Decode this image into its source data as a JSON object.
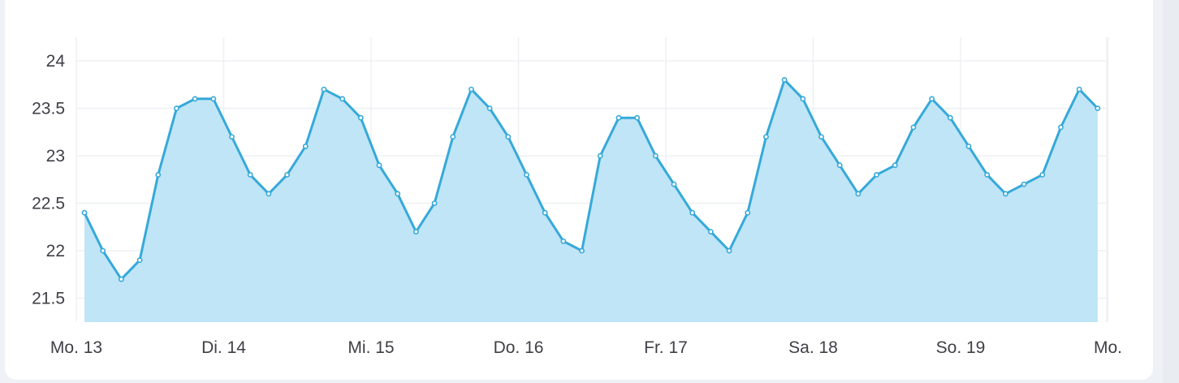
{
  "card": {
    "title": ""
  },
  "colors": {
    "line": "#36a9d9",
    "area": "#bfe5f7",
    "grid": "#eef0f3",
    "point_fill": "#ffffff"
  },
  "chart_data": {
    "type": "area",
    "title": "",
    "xlabel": "",
    "ylabel": "",
    "ylim": [
      21.25,
      24.25
    ],
    "y_ticks": [
      21.5,
      22,
      22.5,
      23,
      23.5,
      24
    ],
    "x_ticks": [
      {
        "label": "Mo. 13",
        "day": 0
      },
      {
        "label": "Di. 14",
        "day": 1
      },
      {
        "label": "Mi. 15",
        "day": 2
      },
      {
        "label": "Do. 16",
        "day": 3
      },
      {
        "label": "Fr. 17",
        "day": 4
      },
      {
        "label": "Sa. 18",
        "day": 5
      },
      {
        "label": "So. 19",
        "day": 6
      },
      {
        "label": "Mo.",
        "day": 7
      }
    ],
    "grid": true,
    "legend": "none",
    "series": [
      {
        "x_hours": [
          0,
          3,
          6,
          9,
          12,
          15,
          18,
          21,
          24,
          27,
          30,
          33,
          36,
          39,
          42,
          45,
          48,
          51,
          54,
          57,
          60,
          63,
          66,
          69,
          72,
          75,
          78,
          81,
          84,
          87,
          90,
          93,
          96,
          99,
          102,
          105,
          108,
          111,
          114,
          117,
          120,
          123,
          126,
          129,
          132,
          135,
          138,
          141,
          144,
          147,
          150,
          153,
          156,
          159,
          162,
          165
        ],
        "values": [
          22.4,
          22.0,
          21.7,
          21.9,
          22.8,
          23.5,
          23.6,
          23.6,
          23.2,
          22.8,
          22.6,
          22.8,
          23.1,
          23.7,
          23.6,
          23.4,
          22.9,
          22.6,
          22.2,
          22.5,
          23.2,
          23.7,
          23.5,
          23.2,
          22.8,
          22.4,
          22.1,
          22.0,
          23.0,
          23.4,
          23.4,
          23.0,
          22.7,
          22.4,
          22.2,
          22.0,
          22.4,
          23.2,
          23.8,
          23.6,
          23.2,
          22.9,
          22.6,
          22.8,
          22.9,
          23.3,
          23.6,
          23.4,
          23.1,
          22.8,
          22.6,
          22.7,
          22.8,
          23.3,
          23.7,
          23.5
        ]
      }
    ]
  }
}
